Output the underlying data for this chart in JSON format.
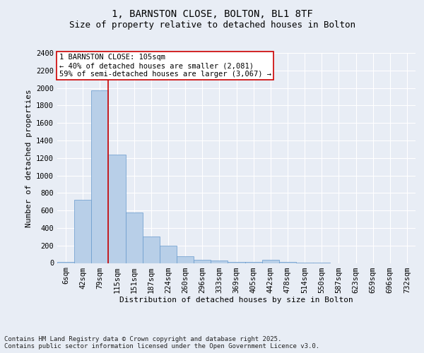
{
  "title_line1": "1, BARNSTON CLOSE, BOLTON, BL1 8TF",
  "title_line2": "Size of property relative to detached houses in Bolton",
  "xlabel": "Distribution of detached houses by size in Bolton",
  "ylabel": "Number of detached properties",
  "categories": [
    "6sqm",
    "42sqm",
    "79sqm",
    "115sqm",
    "151sqm",
    "187sqm",
    "224sqm",
    "260sqm",
    "296sqm",
    "333sqm",
    "369sqm",
    "405sqm",
    "442sqm",
    "478sqm",
    "514sqm",
    "550sqm",
    "587sqm",
    "623sqm",
    "659sqm",
    "696sqm",
    "732sqm"
  ],
  "values": [
    15,
    720,
    1970,
    1240,
    575,
    305,
    200,
    75,
    40,
    30,
    10,
    10,
    35,
    10,
    5,
    5,
    0,
    0,
    0,
    0,
    0
  ],
  "bar_color": "#b8cfe8",
  "bar_edge_color": "#6699cc",
  "background_color": "#e8edf5",
  "grid_color": "#ffffff",
  "vline_color": "#cc0000",
  "vline_x_index": 2.5,
  "annotation_text": "1 BARNSTON CLOSE: 105sqm\n← 40% of detached houses are smaller (2,081)\n59% of semi-detached houses are larger (3,067) →",
  "annotation_box_color": "#ffffff",
  "annotation_edge_color": "#cc0000",
  "ylim": [
    0,
    2400
  ],
  "yticks": [
    0,
    200,
    400,
    600,
    800,
    1000,
    1200,
    1400,
    1600,
    1800,
    2000,
    2200,
    2400
  ],
  "footnote": "Contains HM Land Registry data © Crown copyright and database right 2025.\nContains public sector information licensed under the Open Government Licence v3.0.",
  "title_fontsize": 10,
  "subtitle_fontsize": 9,
  "axis_label_fontsize": 8,
  "tick_fontsize": 7.5,
  "annot_fontsize": 7.5,
  "footnote_fontsize": 6.5
}
